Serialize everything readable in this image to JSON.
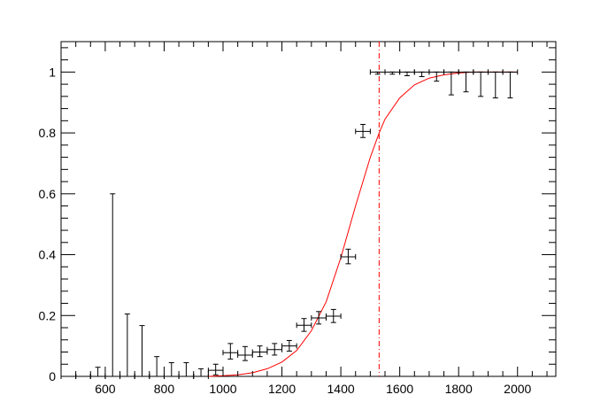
{
  "chart_data": {
    "type": "scatter",
    "title": "",
    "xlabel": "",
    "ylabel": "",
    "xlim": [
      450,
      2130
    ],
    "ylim": [
      0,
      1.1
    ],
    "grid": false,
    "x_ticks": [
      600,
      800,
      1000,
      1200,
      1400,
      1600,
      1800,
      2000
    ],
    "x_tick_labels": [
      "600",
      "800",
      "1000",
      "1200",
      "1400",
      "1600",
      "1800",
      "2000"
    ],
    "y_ticks": [
      0,
      0.2,
      0.4,
      0.6,
      0.8,
      1
    ],
    "y_tick_labels": [
      "0",
      "0.2",
      "0.4",
      "0.6",
      "0.8",
      "1"
    ],
    "x_bin_half_width": 25,
    "series": [
      {
        "kind": "points_with_errors",
        "color": "#000000",
        "points": [
          {
            "x": 475,
            "y": 0,
            "lo": 0,
            "hi": 0
          },
          {
            "x": 525,
            "y": 0,
            "lo": 0,
            "hi": 0
          },
          {
            "x": 575,
            "y": 0,
            "lo": 0,
            "hi": 0.03
          },
          {
            "x": 625,
            "y": 0,
            "lo": 0,
            "hi": 0.6
          },
          {
            "x": 675,
            "y": 0,
            "lo": 0,
            "hi": 0.205
          },
          {
            "x": 725,
            "y": 0,
            "lo": 0,
            "hi": 0.167
          },
          {
            "x": 775,
            "y": 0,
            "lo": 0,
            "hi": 0.065
          },
          {
            "x": 825,
            "y": 0,
            "lo": 0,
            "hi": 0.045
          },
          {
            "x": 875,
            "y": 0,
            "lo": 0,
            "hi": 0.045
          },
          {
            "x": 925,
            "y": 0,
            "lo": 0,
            "hi": 0.025
          },
          {
            "x": 975,
            "y": 0.02,
            "lo": 0.005,
            "hi": 0.04
          },
          {
            "x": 1025,
            "y": 0.078,
            "lo": 0.057,
            "hi": 0.108
          },
          {
            "x": 1075,
            "y": 0.07,
            "lo": 0.052,
            "hi": 0.098
          },
          {
            "x": 1125,
            "y": 0.08,
            "lo": 0.065,
            "hi": 0.1
          },
          {
            "x": 1175,
            "y": 0.088,
            "lo": 0.07,
            "hi": 0.108
          },
          {
            "x": 1225,
            "y": 0.1,
            "lo": 0.083,
            "hi": 0.118
          },
          {
            "x": 1275,
            "y": 0.168,
            "lo": 0.148,
            "hi": 0.19
          },
          {
            "x": 1325,
            "y": 0.192,
            "lo": 0.172,
            "hi": 0.213
          },
          {
            "x": 1375,
            "y": 0.198,
            "lo": 0.177,
            "hi": 0.22
          },
          {
            "x": 1425,
            "y": 0.393,
            "lo": 0.37,
            "hi": 0.418
          },
          {
            "x": 1475,
            "y": 0.805,
            "lo": 0.785,
            "hi": 0.828
          },
          {
            "x": 1525,
            "y": 1,
            "lo": 0.993,
            "hi": 1
          },
          {
            "x": 1575,
            "y": 1,
            "lo": 0.993,
            "hi": 1
          },
          {
            "x": 1625,
            "y": 1,
            "lo": 0.988,
            "hi": 1
          },
          {
            "x": 1675,
            "y": 1,
            "lo": 0.985,
            "hi": 1
          },
          {
            "x": 1725,
            "y": 1,
            "lo": 0.97,
            "hi": 1
          },
          {
            "x": 1775,
            "y": 1,
            "lo": 0.925,
            "hi": 1
          },
          {
            "x": 1825,
            "y": 1,
            "lo": 0.935,
            "hi": 1
          },
          {
            "x": 1875,
            "y": 1,
            "lo": 0.92,
            "hi": 1
          },
          {
            "x": 1925,
            "y": 1,
            "lo": 0.915,
            "hi": 1
          },
          {
            "x": 1975,
            "y": 1,
            "lo": 0.915,
            "hi": 1
          }
        ]
      },
      {
        "kind": "fit_curve",
        "color": "#ff0000",
        "x": [
          450,
          800,
          950,
          1000,
          1050,
          1100,
          1150,
          1200,
          1250,
          1300,
          1350,
          1400,
          1450,
          1500,
          1530,
          1550,
          1600,
          1650,
          1700,
          1750,
          1800,
          1850,
          1900,
          2000
        ],
        "y": [
          0,
          0,
          0,
          0.002,
          0.005,
          0.012,
          0.025,
          0.047,
          0.085,
          0.15,
          0.245,
          0.39,
          0.56,
          0.72,
          0.8,
          0.845,
          0.915,
          0.958,
          0.98,
          0.991,
          0.997,
          1,
          1,
          1
        ]
      }
    ],
    "reference_lines": [
      {
        "orientation": "vertical",
        "x": 1530,
        "color": "#ff0000",
        "style": "dash-dot"
      }
    ]
  }
}
